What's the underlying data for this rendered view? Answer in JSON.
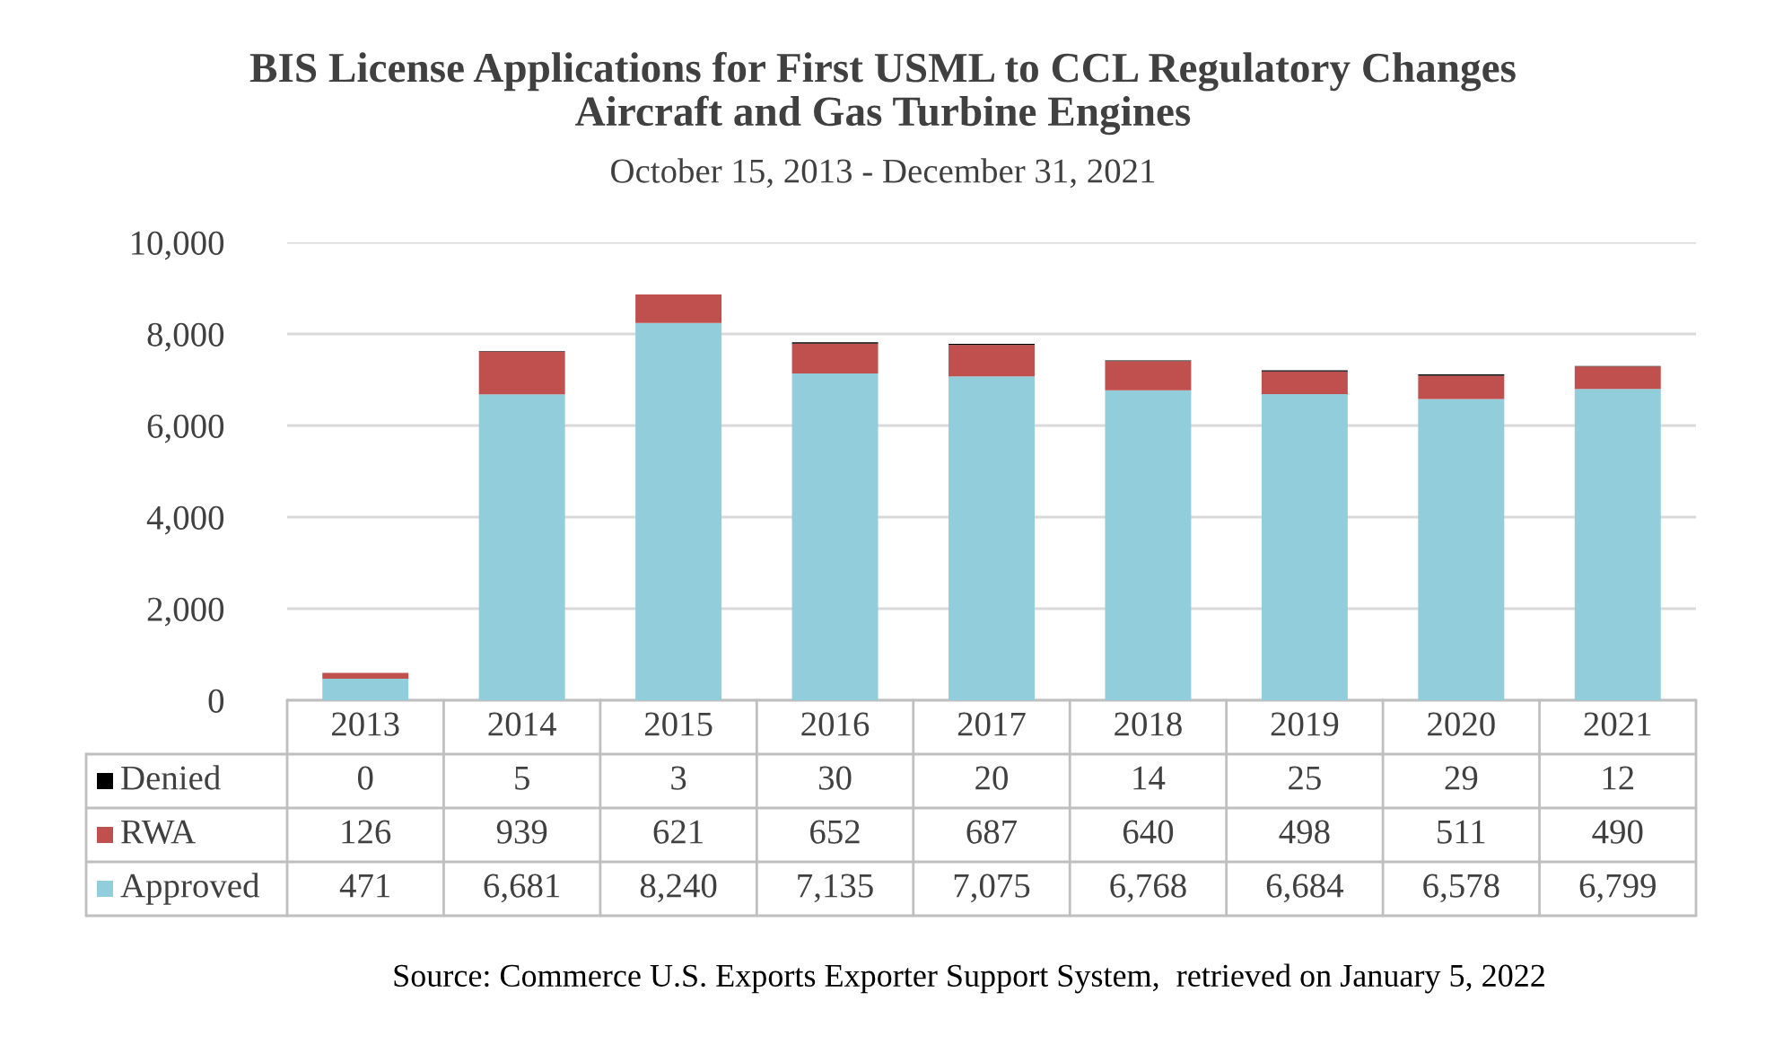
{
  "chart_data": {
    "type": "bar",
    "title": "BIS License Applications for First USML to CCL Regulatory Changes\nAircraft and Gas Turbine Engines",
    "subtitle": "October 15, 2013 - December 31, 2021",
    "categories": [
      "2013",
      "2014",
      "2015",
      "2016",
      "2017",
      "2018",
      "2019",
      "2020",
      "2021"
    ],
    "stacked": true,
    "series": [
      {
        "name": "Approved",
        "color": "#92cddc",
        "values": [
          471,
          6681,
          8240,
          7135,
          7075,
          6768,
          6684,
          6578,
          6799
        ],
        "value_labels": [
          "471",
          "6,681",
          "8,240",
          "7,135",
          "7,075",
          "6,768",
          "6,684",
          "6,578",
          "6,799"
        ]
      },
      {
        "name": "RWA",
        "color": "#c0504d",
        "values": [
          126,
          939,
          621,
          652,
          687,
          640,
          498,
          511,
          490
        ],
        "value_labels": [
          "126",
          "939",
          "621",
          "652",
          "687",
          "640",
          "498",
          "511",
          "490"
        ]
      },
      {
        "name": "Denied",
        "color": "#000000",
        "values": [
          0,
          5,
          3,
          30,
          20,
          14,
          25,
          29,
          12
        ],
        "value_labels": [
          "0",
          "5",
          "3",
          "30",
          "20",
          "14",
          "25",
          "29",
          "12"
        ]
      }
    ],
    "ylim": [
      0,
      10000
    ],
    "yticks": [
      {
        "value": 0,
        "label": "0"
      },
      {
        "value": 2000,
        "label": "2,000"
      },
      {
        "value": 4000,
        "label": "4,000"
      },
      {
        "value": 6000,
        "label": "6,000"
      },
      {
        "value": 8000,
        "label": "8,000"
      },
      {
        "value": 10000,
        "label": "10,000"
      }
    ],
    "grid": "y",
    "legend": "bottom",
    "annotations": [
      "Source: Commerce U.S. Exports Exporter Support System,  retrieved on January 5, 2022"
    ]
  }
}
